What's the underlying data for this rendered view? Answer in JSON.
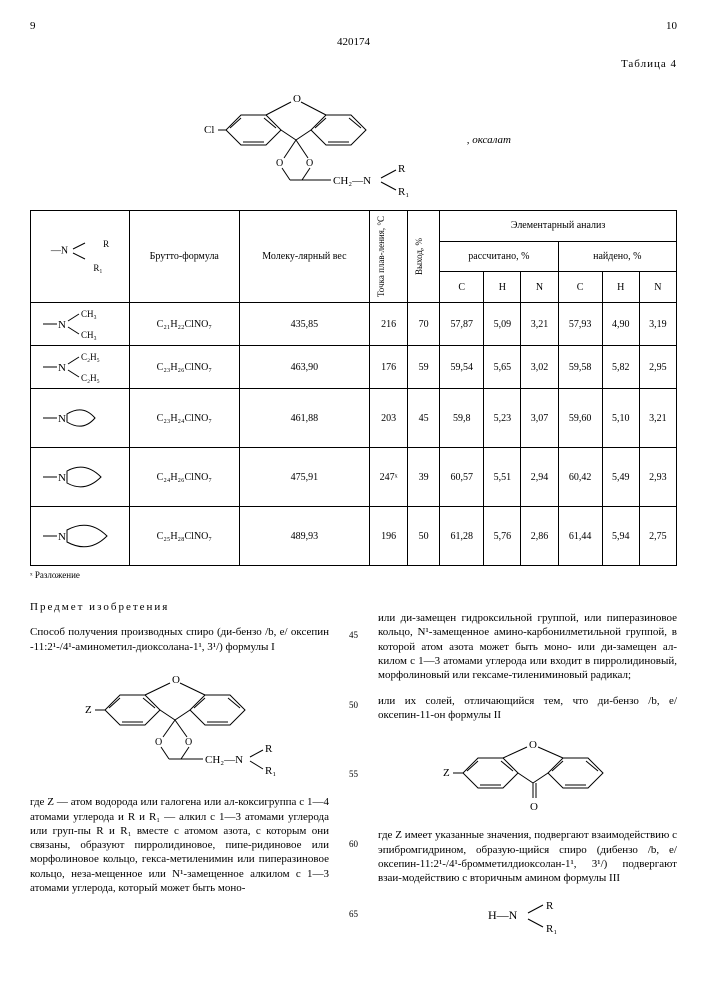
{
  "doc_number": "420174",
  "page_left": "9",
  "page_right": "10",
  "table_label": "Таблица 4",
  "top_formula": {
    "oxalate_label": ", оксалат",
    "ch2n_label": "CH₂—N",
    "r_label": "R",
    "r1_label": "R₁",
    "cl_label": "Cl",
    "o_label": "O"
  },
  "table": {
    "headers": {
      "nr": "—N",
      "nr_r": "R",
      "nr_r1": "R₁",
      "brutto": "Брутто-формула",
      "molwt": "Молеку-лярный вес",
      "mp": "Точка плав-ления, °С",
      "yield": "Выход, %",
      "elem": "Элементарный анализ",
      "calc": "рассчитано, %",
      "found": "найдено, %",
      "c": "С",
      "h": "Н",
      "n": "N"
    },
    "rows": [
      {
        "r": "dimethyl",
        "r_label1": "CH₃",
        "r_label2": "CH₃",
        "formula": "C₂₁H₂₂ClNO₇",
        "mw": "435,85",
        "mp": "216",
        "yield": "70",
        "cc": "57,87",
        "hc": "5,09",
        "nc": "3,21",
        "cf": "57,93",
        "hf": "4,90",
        "nf": "3,19"
      },
      {
        "r": "diethyl",
        "r_label1": "C₂H₅",
        "r_label2": "C₂H₅",
        "formula": "C₂₃H₂₆ClNO₇",
        "mw": "463,90",
        "mp": "176",
        "yield": "59",
        "cc": "59,54",
        "hc": "5,65",
        "nc": "3,02",
        "cf": "59,58",
        "hf": "5,82",
        "nf": "2,95"
      },
      {
        "r": "pyrrolidine",
        "formula": "C₂₃H₂₄ClNO₇",
        "mw": "461,88",
        "mp": "203",
        "yield": "45",
        "cc": "59,8",
        "hc": "5,23",
        "nc": "3,07",
        "cf": "59,60",
        "hf": "5,10",
        "nf": "3,21"
      },
      {
        "r": "piperidine",
        "formula": "C₂₄H₂₆ClNO₇",
        "mw": "475,91",
        "mp": "247ˣ",
        "yield": "39",
        "cc": "60,57",
        "hc": "5,51",
        "nc": "2,94",
        "cf": "60,42",
        "hf": "5,49",
        "nf": "2,93"
      },
      {
        "r": "hexamethyleneimine",
        "formula": "C₂₅H₂₈ClNO₇",
        "mw": "489,93",
        "mp": "196",
        "yield": "50",
        "cc": "61,28",
        "hc": "5,76",
        "nc": "2,86",
        "cf": "61,44",
        "hf": "5,94",
        "nf": "2,75"
      }
    ],
    "footnote": "ˣ Разложение"
  },
  "col_left": {
    "title": "Предмет изобретения",
    "p1": "Способ получения производных спиро (ди-бензо /b, e/ оксепин -11:2¹-/4¹-аминометил-диоксолана-1¹, 3¹/) формулы I",
    "formula_labels": {
      "z": "Z",
      "o": "O",
      "ch2n": "CH₂—N",
      "r": "R",
      "r1": "R₁"
    },
    "p2": "где Z — атом водорода или галогена или ал-коксигруппа с 1—4 атомами углерода и R и R₁ — алкил с 1—3 атомами углерода или груп-пы R и R₁ вместе с атомом азота, с которым они связаны, образуют пирролидиновое, пипе-ридиновое или морфолиновое кольцо, гекса-метиленимин или пиперазиновое кольцо, неза-мещенное или N¹-замещенное алкилом с 1—3 атомами углерода, который может быть моно-"
  },
  "line_nums": [
    "45",
    "50",
    "55",
    "60",
    "65"
  ],
  "col_right": {
    "p1": "или ди-замещен гидроксильной группой, или пиперазиновое кольцо, N¹-замещенное амино-карбонилметильной группой, в которой атом азота может быть моно- или ди-замещен ал-килом с 1—3 атомами углерода или входит в пирролидиновый, морфолиновый или гексаме-тилениминовый радикал;",
    "p2": "или их солей, отличающийся тем, что ди-бензо /b, e/ оксепин-11-он формулы II",
    "formula2_labels": {
      "z": "Z",
      "o": "O",
      "o2": "O",
      "o3": "O"
    },
    "p3": "где Z имеет указанные значения, подвергают взаимодействию с эпибромгидрином, образую-щийся спиро (дибензо /b, e/ оксепин-11:2¹-/4¹-бромметилдиоксолан-1¹, 3¹/) подвергают взаи-модействию с вторичным амином формулы III",
    "formula3": {
      "hn": "H—N",
      "r": "R",
      "r1": "R₁"
    }
  }
}
